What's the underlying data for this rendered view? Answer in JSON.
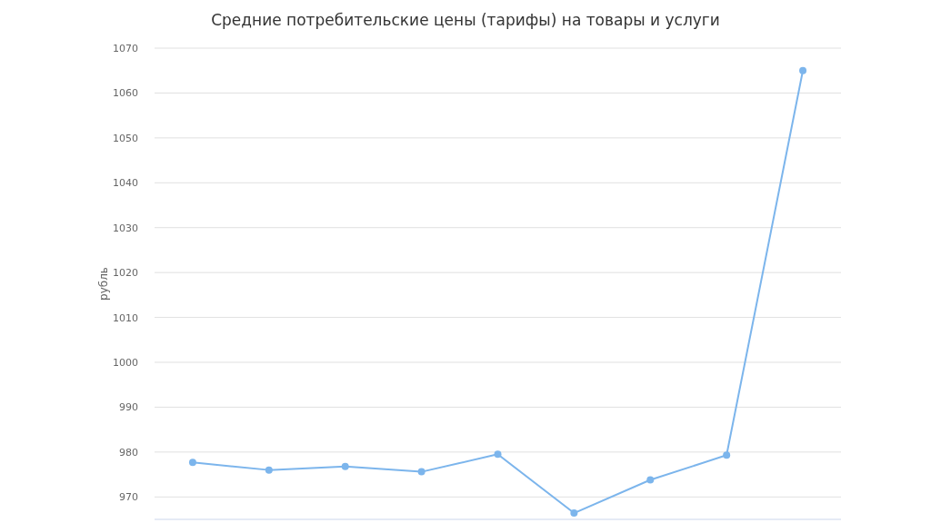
{
  "chart_data": {
    "type": "line",
    "title": "Средние потребительские цены (тарифы) на товары и услуги",
    "ylabel": "рубль",
    "categories": [
      null,
      null,
      null,
      null,
      null,
      null,
      null,
      null,
      null
    ],
    "series": [
      {
        "color": "#7cb5ec",
        "values": [
          977.7,
          976.0,
          976.8,
          975.6,
          979.5,
          966.4,
          973.8,
          979.3,
          1065.0
        ]
      }
    ],
    "ylim": [
      965,
      1070
    ],
    "yticks": [
      970,
      980,
      990,
      1000,
      1010,
      1020,
      1030,
      1040,
      1050,
      1060,
      1070
    ],
    "grid": "y",
    "marker": "circle",
    "line_style": "solid"
  }
}
